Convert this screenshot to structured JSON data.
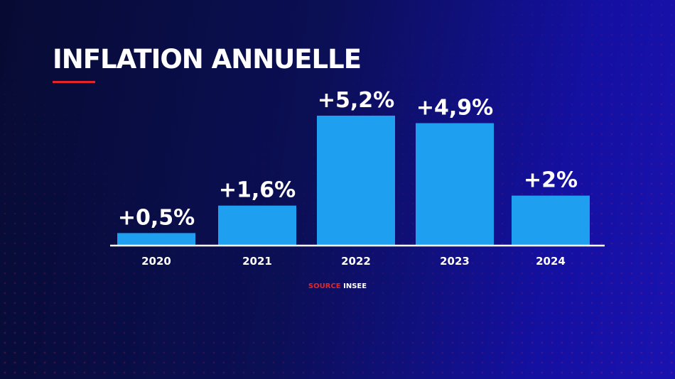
{
  "title": "INFLATION ANNUELLE",
  "source": {
    "label": "SOURCE",
    "value": "INSEE"
  },
  "colors": {
    "bar": "#1e9ff0",
    "accent": "#e0262b",
    "text": "#ffffff"
  },
  "chart_data": {
    "type": "bar",
    "title": "INFLATION ANNUELLE",
    "categories": [
      "2020",
      "2021",
      "2022",
      "2023",
      "2024"
    ],
    "values": [
      0.5,
      1.6,
      5.2,
      4.9,
      2.0
    ],
    "data_labels": [
      "+0,5%",
      "+1,6%",
      "+5,2%",
      "+4,9%",
      "+2%"
    ],
    "xlabel": "",
    "ylabel": "",
    "grid": false
  }
}
